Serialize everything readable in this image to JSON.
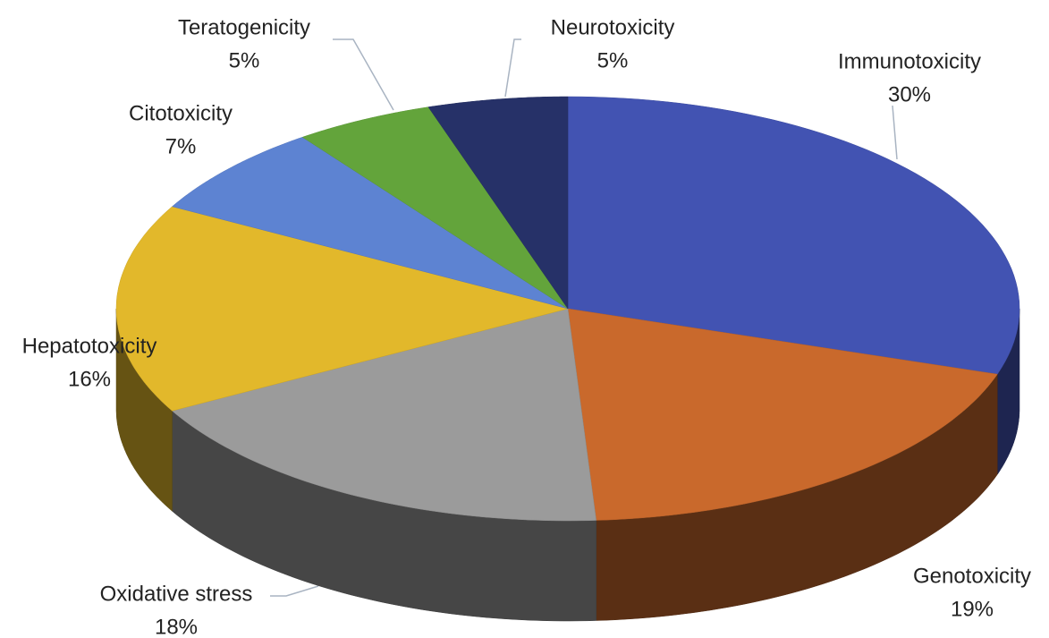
{
  "chart_data": {
    "type": "pie3d",
    "categories": [
      "Immunotoxicity",
      "Genotoxicity",
      "Oxidative stress",
      "Hepatotoxicity",
      "Citotoxicity",
      "Teratogenicity",
      "Neurotoxicity"
    ],
    "values": [
      30,
      19,
      18,
      16,
      7,
      5,
      5
    ],
    "value_labels": [
      "30%",
      "19%",
      "18%",
      "16%",
      "7%",
      "5%",
      "5%"
    ],
    "colors": [
      "#4253b2",
      "#c9692c",
      "#9b9b9b",
      "#e2b82b",
      "#5d83d2",
      "#63a43b",
      "#263168"
    ]
  }
}
